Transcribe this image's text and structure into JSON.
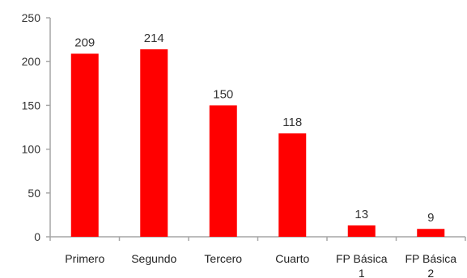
{
  "chart_data": {
    "type": "bar",
    "categories": [
      "Primero",
      "Segundo",
      "Tercero",
      "Cuarto",
      "FP Básica 1",
      "FP Básica 2"
    ],
    "category_lines": [
      [
        "Primero"
      ],
      [
        "Segundo"
      ],
      [
        "Tercero"
      ],
      [
        "Cuarto"
      ],
      [
        "FP Básica",
        "1"
      ],
      [
        "FP Básica",
        "2"
      ]
    ],
    "values": [
      209,
      214,
      150,
      118,
      13,
      9
    ],
    "ylim": [
      0,
      250
    ],
    "yticks": [
      0,
      50,
      100,
      150,
      200,
      250
    ],
    "grid": false,
    "data_labels": true,
    "bar_color": "#ff0000",
    "axis_color": "#a6a6a6"
  }
}
